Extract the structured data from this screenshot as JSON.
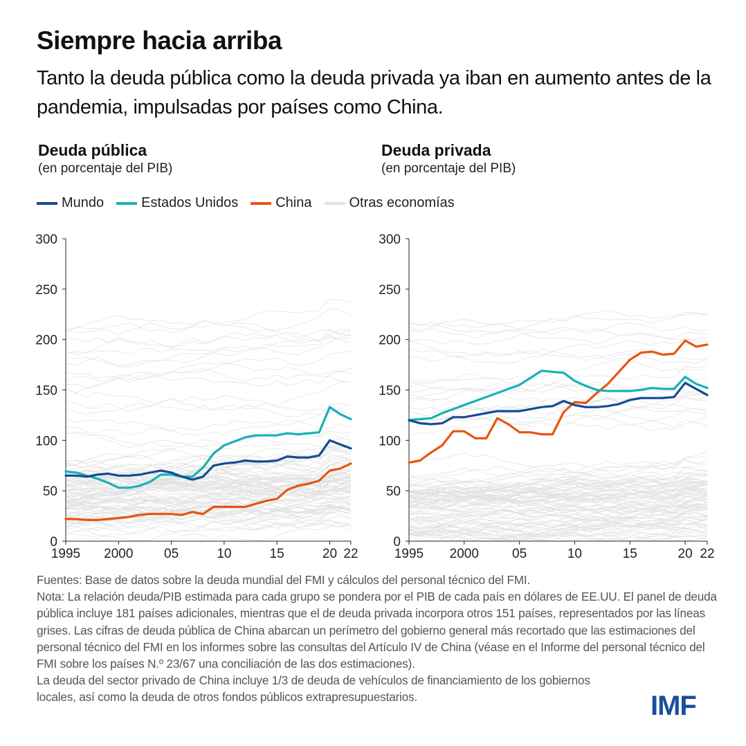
{
  "header": {
    "title": "Siempre hacia arriba",
    "subtitle": "Tanto la deuda pública como la deuda privada ya iban en aumento antes de la pandemia, impulsadas por países como China."
  },
  "legend": [
    {
      "label": "Mundo",
      "color": "#174a94"
    },
    {
      "label": "Estados Unidos",
      "color": "#17b1b5"
    },
    {
      "label": "China",
      "color": "#e8540e"
    },
    {
      "label": "Otras economías",
      "color": "#e0e0e0"
    }
  ],
  "chart_data": [
    {
      "type": "line",
      "title": "Deuda pública",
      "subtitle": "(en porcentaje del PIB)",
      "xlabel": "",
      "ylabel": "",
      "ylim": [
        0,
        300
      ],
      "xlim": [
        1995,
        2022
      ],
      "yticks": [
        0,
        50,
        100,
        150,
        200,
        250,
        300
      ],
      "xticks": [
        {
          "value": 1995,
          "label": "1995"
        },
        {
          "value": 2000,
          "label": "2000"
        },
        {
          "value": 2005,
          "label": "05"
        },
        {
          "value": 2010,
          "label": "10"
        },
        {
          "value": 2015,
          "label": "15"
        },
        {
          "value": 2020,
          "label": "20"
        },
        {
          "value": 2022,
          "label": "22"
        }
      ],
      "grid": false,
      "x": [
        1995,
        1996,
        1997,
        1998,
        1999,
        2000,
        2001,
        2002,
        2003,
        2004,
        2005,
        2006,
        2007,
        2008,
        2009,
        2010,
        2011,
        2012,
        2013,
        2014,
        2015,
        2016,
        2017,
        2018,
        2019,
        2020,
        2021,
        2022
      ],
      "series": [
        {
          "name": "Mundo",
          "color": "#174a94",
          "values": [
            65,
            65,
            64,
            66,
            67,
            65,
            65,
            66,
            68,
            70,
            68,
            64,
            61,
            64,
            75,
            77,
            78,
            80,
            79,
            79,
            80,
            84,
            83,
            83,
            85,
            100,
            96,
            92
          ]
        },
        {
          "name": "Estados Unidos",
          "color": "#17b1b5",
          "values": [
            69,
            68,
            65,
            62,
            58,
            53,
            53,
            55,
            59,
            66,
            66,
            64,
            64,
            73,
            87,
            95,
            99,
            103,
            105,
            105,
            105,
            107,
            106,
            107,
            108,
            133,
            126,
            121
          ]
        },
        {
          "name": "China",
          "color": "#e8540e",
          "values": [
            22,
            22,
            21,
            21,
            22,
            23,
            24,
            26,
            27,
            27,
            27,
            26,
            29,
            27,
            34,
            34,
            34,
            34,
            37,
            40,
            42,
            51,
            55,
            57,
            60,
            70,
            72,
            77
          ]
        }
      ],
      "background_series_count": 181,
      "background_series_label": "Otras economías"
    },
    {
      "type": "line",
      "title": "Deuda privada",
      "subtitle": "(en porcentaje del PIB)",
      "xlabel": "",
      "ylabel": "",
      "ylim": [
        0,
        300
      ],
      "xlim": [
        1995,
        2022
      ],
      "yticks": [
        0,
        50,
        100,
        150,
        200,
        250,
        300
      ],
      "xticks": [
        {
          "value": 1995,
          "label": "1995"
        },
        {
          "value": 2000,
          "label": "2000"
        },
        {
          "value": 2005,
          "label": "05"
        },
        {
          "value": 2010,
          "label": "10"
        },
        {
          "value": 2015,
          "label": "15"
        },
        {
          "value": 2020,
          "label": "20"
        },
        {
          "value": 2022,
          "label": "22"
        }
      ],
      "grid": false,
      "x": [
        1995,
        1996,
        1997,
        1998,
        1999,
        2000,
        2001,
        2002,
        2003,
        2004,
        2005,
        2006,
        2007,
        2008,
        2009,
        2010,
        2011,
        2012,
        2013,
        2014,
        2015,
        2016,
        2017,
        2018,
        2019,
        2020,
        2021,
        2022
      ],
      "series": [
        {
          "name": "Mundo",
          "color": "#174a94",
          "values": [
            120,
            117,
            116,
            117,
            123,
            123,
            125,
            127,
            129,
            129,
            129,
            131,
            133,
            134,
            139,
            135,
            133,
            133,
            134,
            136,
            140,
            142,
            142,
            142,
            143,
            157,
            151,
            145
          ]
        },
        {
          "name": "Estados Unidos",
          "color": "#17b1b5",
          "values": [
            120,
            121,
            122,
            127,
            131,
            135,
            139,
            143,
            147,
            151,
            155,
            162,
            169,
            168,
            167,
            159,
            154,
            150,
            149,
            149,
            149,
            150,
            152,
            151,
            151,
            163,
            156,
            152
          ]
        },
        {
          "name": "China",
          "color": "#e8540e",
          "values": [
            78,
            80,
            88,
            95,
            109,
            109,
            102,
            102,
            122,
            116,
            108,
            108,
            106,
            106,
            128,
            138,
            137,
            147,
            156,
            168,
            180,
            187,
            188,
            185,
            186,
            199,
            193,
            195
          ]
        }
      ],
      "background_series_count": 151,
      "background_series_label": "Otras economías"
    }
  ],
  "notes": [
    "Fuentes: Base de datos sobre la deuda mundial del FMI y cálculos del personal técnico del FMI.",
    "Nota: La relación deuda/PIB estimada para cada grupo se pondera por el PIB de cada país en dólares de EE.UU. El panel de deuda pública incluye 181 países adicionales, mientras que el de deuda privada incorpora otros 151 países, representados por las líneas grises. Las cifras de deuda pública de China abarcan un perímetro del gobierno general más recortado que las estimaciones del personal técnico del FMI en los informes sobre las consultas del Artículo IV de China (véase en el Informe del personal técnico del FMI sobre los países N.º 23/67 una conciliación de las dos estimaciones).",
    "La deuda del sector privado de China incluye 1/3 de deuda de vehículos de financiamiento de los gobiernos locales, así como la deuda de otros fondos públicos extrapresupuestarios."
  ],
  "logo": {
    "text": "IMF",
    "color": "#1a4f9c"
  }
}
